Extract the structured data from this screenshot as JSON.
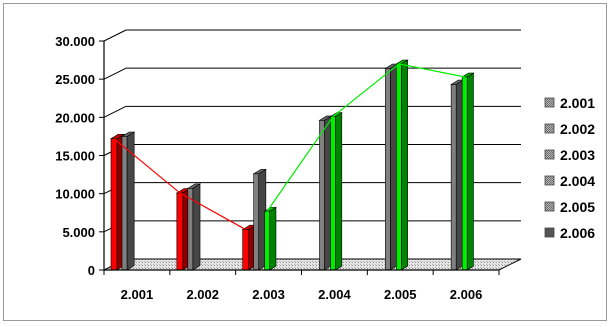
{
  "chart_data": {
    "type": "bar",
    "categories": [
      "2.001",
      "2.002",
      "2.003",
      "2.004",
      "2.005",
      "2.006"
    ],
    "yticks": [
      "0",
      "5.000",
      "10.000",
      "15.000",
      "20.000",
      "25.000",
      "30.000"
    ],
    "ylim": [
      0,
      30000
    ],
    "grid": true,
    "legend_position": "right",
    "legend": [
      "2.001",
      "2.002",
      "2.003",
      "2.004",
      "2.005",
      "2.006"
    ],
    "series": [
      {
        "values": [
          17200,
          10100,
          5300,
          null,
          null,
          null
        ],
        "color": "#ff0000"
      },
      {
        "values": [
          17500,
          10700,
          12600,
          19600,
          26400,
          24300
        ],
        "color": "#808080"
      },
      {
        "values": [
          null,
          null,
          7700,
          20100,
          27000,
          25300
        ],
        "color": "#00ee00"
      }
    ],
    "trend_lines": [
      {
        "color": "#ff0000",
        "values": [
          17200,
          10100,
          5300,
          null,
          null,
          null
        ]
      },
      {
        "color": "#00ee00",
        "values": [
          null,
          null,
          7700,
          20100,
          27000,
          25300
        ]
      }
    ],
    "legend_colors": [
      "#999999",
      "#999999",
      "#999999",
      "#999999",
      "#999999",
      "#555555"
    ],
    "title": "",
    "xlabel": "",
    "ylabel": ""
  }
}
